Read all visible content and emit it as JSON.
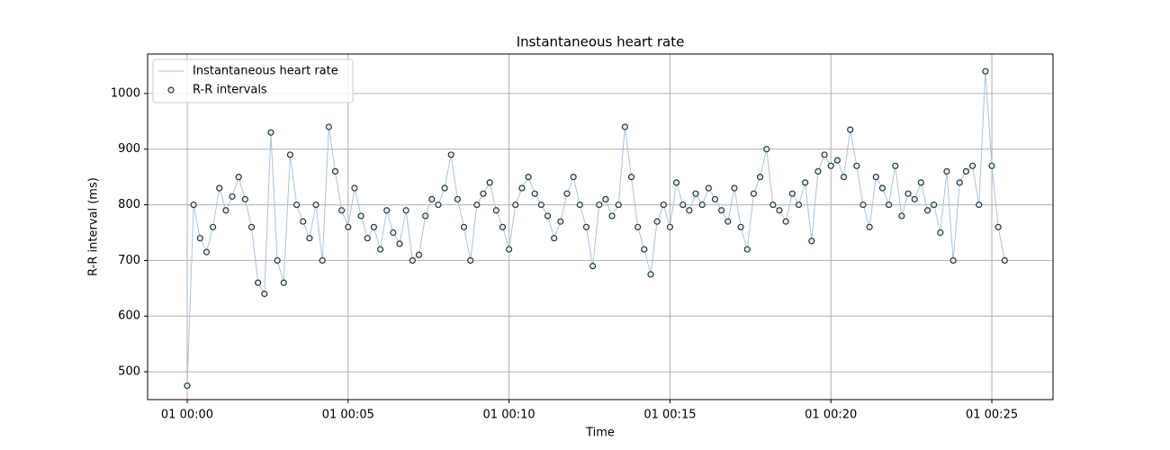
{
  "chart_data": {
    "type": "line",
    "title": "Instantaneous heart rate",
    "xlabel": "Time",
    "ylabel": "R-R interval (ms)",
    "x": [
      0,
      0.2,
      0.4,
      0.6,
      0.8,
      1,
      1.2,
      1.4,
      1.6,
      1.8,
      2,
      2.2,
      2.4,
      2.6,
      2.8,
      3,
      3.2,
      3.4,
      3.6,
      3.8,
      4,
      4.2,
      4.4,
      4.6,
      4.8,
      5,
      5.2,
      5.4,
      5.6,
      5.8,
      6,
      6.2,
      6.4,
      6.6,
      6.8,
      7,
      7.2,
      7.4,
      7.6,
      7.8,
      8,
      8.2,
      8.4,
      8.6,
      8.8,
      9,
      9.2,
      9.4,
      9.6,
      9.8,
      10,
      10.2,
      10.4,
      10.6,
      10.8,
      11,
      11.2,
      11.4,
      11.6,
      11.8,
      12,
      12.2,
      12.4,
      12.6,
      12.8,
      13,
      13.2,
      13.4,
      13.6,
      13.8,
      14,
      14.2,
      14.4,
      14.6,
      14.8,
      15,
      15.2,
      15.4,
      15.6,
      15.8,
      16,
      16.2,
      16.4,
      16.6,
      16.8,
      17,
      17.2,
      17.4,
      17.6,
      17.8,
      18,
      18.2,
      18.4,
      18.6,
      18.8,
      19,
      19.2,
      19.4,
      19.6,
      19.8,
      20,
      20.2,
      20.4,
      20.6,
      20.8,
      21,
      21.2,
      21.4,
      21.6,
      21.8,
      22,
      22.2,
      22.4,
      22.6,
      22.8,
      23,
      23.2,
      23.4,
      23.6,
      23.8,
      24,
      24.2,
      24.4,
      24.6,
      24.8,
      25,
      25.2,
      25.4
    ],
    "values": [
      475,
      800,
      740,
      715,
      760,
      830,
      790,
      815,
      850,
      810,
      760,
      660,
      640,
      930,
      700,
      660,
      890,
      800,
      770,
      740,
      800,
      700,
      940,
      860,
      790,
      760,
      830,
      780,
      740,
      760,
      720,
      790,
      750,
      730,
      790,
      700,
      710,
      780,
      810,
      800,
      830,
      890,
      810,
      760,
      700,
      800,
      820,
      840,
      790,
      760,
      720,
      800,
      830,
      850,
      820,
      800,
      780,
      740,
      770,
      820,
      850,
      800,
      760,
      690,
      800,
      810,
      780,
      800,
      940,
      850,
      760,
      720,
      675,
      770,
      800,
      760,
      840,
      800,
      790,
      820,
      800,
      830,
      810,
      790,
      770,
      830,
      760,
      720,
      820,
      850,
      900,
      800,
      790,
      770,
      820,
      800,
      840,
      735,
      860,
      890,
      870,
      880,
      850,
      935,
      870,
      800,
      760,
      850,
      830,
      800,
      870,
      780,
      820,
      810,
      840,
      790,
      800,
      750,
      860,
      700,
      840,
      860,
      870,
      800,
      1040,
      870,
      760,
      700
    ],
    "series": [
      {
        "name": "Instantaneous heart rate",
        "color": "#a9c4dd",
        "style": "line"
      },
      {
        "name": "R-R intervals",
        "color": "#1f3b3b",
        "style": "marker"
      }
    ],
    "xlim": [
      -1.23,
      26.9
    ],
    "ylim": [
      450,
      1071
    ],
    "xticks": [
      {
        "value": 0,
        "label": "01 00:00"
      },
      {
        "value": 5,
        "label": "01 00:05"
      },
      {
        "value": 10,
        "label": "01 00:10"
      },
      {
        "value": 15,
        "label": "01 00:15"
      },
      {
        "value": 20,
        "label": "01 00:20"
      },
      {
        "value": 25,
        "label": "01 00:25"
      }
    ],
    "yticks": [
      500,
      600,
      700,
      800,
      900,
      1000
    ],
    "grid": true,
    "legend": "upper left"
  }
}
